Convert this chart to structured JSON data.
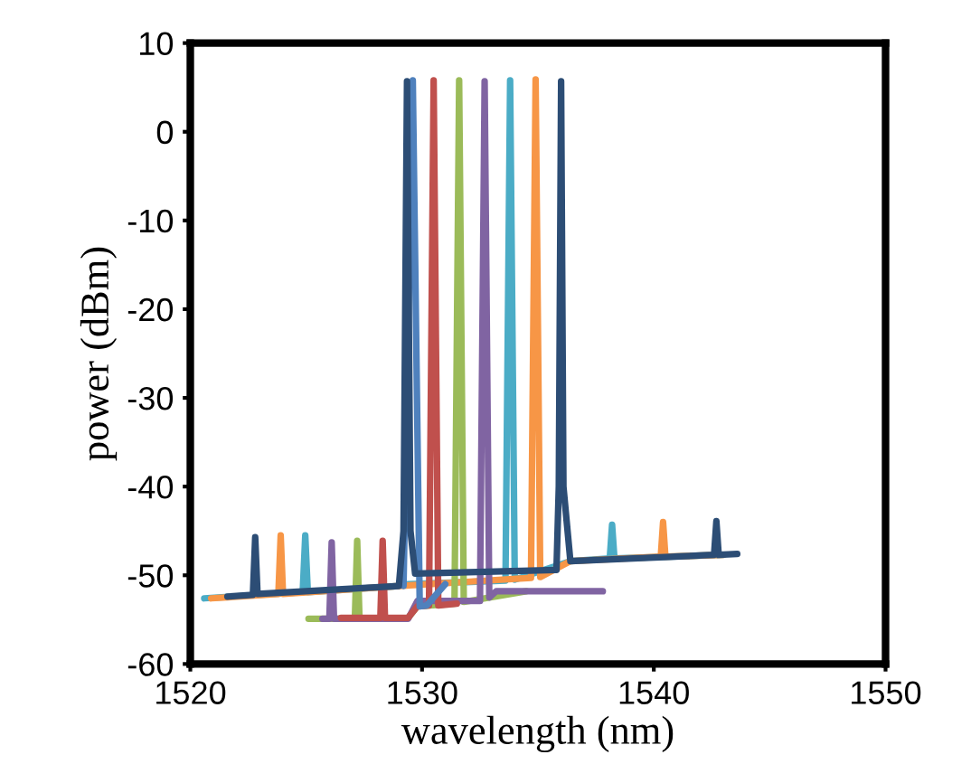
{
  "chart_data": {
    "type": "line",
    "xlabel": "wavelength (nm)",
    "ylabel": "power (dBm)",
    "xlim": [
      1520,
      1550
    ],
    "xticks": [
      1520,
      1530,
      1540,
      1550
    ],
    "ylim": [
      -60,
      10
    ],
    "yticks": [
      -60,
      -50,
      -40,
      -30,
      -20,
      -10,
      0,
      10
    ],
    "grid": false,
    "legend": false,
    "marker": "none",
    "line_style": "solid",
    "series": [
      {
        "color": "#4bacc6",
        "x": [
          1520.6,
          1524.85,
          1524.96,
          1525.07,
          1529.0,
          1529.4,
          1533.6,
          1533.8,
          1534.0,
          1536.4,
          1538.1,
          1538.2,
          1538.3,
          1543.0
        ],
        "values": [
          -52.6,
          -51.9,
          -45.5,
          -51.9,
          -51.2,
          -51.0,
          -50.6,
          5.8,
          -50.5,
          -48.4,
          -48.1,
          -44.3,
          -48.1,
          -47.7
        ]
      },
      {
        "color": "#f79646",
        "x": [
          1520.9,
          1523.8,
          1523.9,
          1524.0,
          1529.0,
          1534.7,
          1534.9,
          1535.1,
          1536.4,
          1540.3,
          1540.4,
          1540.5,
          1543.0
        ],
        "values": [
          -52.6,
          -52.1,
          -45.5,
          -52.1,
          -51.2,
          -50.3,
          5.9,
          -50.2,
          -48.4,
          -47.9,
          -44.0,
          -47.9,
          -47.7
        ]
      },
      {
        "color": "#9bbb59",
        "x": [
          1525.1,
          1527.1,
          1527.2,
          1527.3,
          1529.4,
          1529.8,
          1531.4,
          1531.6,
          1531.8,
          1534.5
        ],
        "values": [
          -54.9,
          -54.9,
          -46.1,
          -54.9,
          -54.8,
          -53.5,
          -53.2,
          5.8,
          -53.0,
          -51.8
        ]
      },
      {
        "color": "#8064a2",
        "x": [
          1525.7,
          1526.0,
          1526.1,
          1526.2,
          1529.4,
          1529.8,
          1532.5,
          1532.7,
          1532.9,
          1533.2,
          1537.8
        ],
        "values": [
          -54.9,
          -54.9,
          -46.3,
          -54.9,
          -54.9,
          -52.9,
          -52.9,
          5.7,
          -52.5,
          -51.8,
          -51.8
        ]
      },
      {
        "color": "#c0504d",
        "x": [
          1526.5,
          1528.2,
          1528.3,
          1528.4,
          1529.4,
          1529.8,
          1530.3,
          1530.5,
          1530.7,
          1531.5
        ],
        "values": [
          -54.8,
          -54.8,
          -46.1,
          -54.8,
          -54.8,
          -53.5,
          -53.4,
          5.8,
          -53.4,
          -53.2
        ]
      },
      {
        "color": "#4f81bd",
        "x": [
          1529.2,
          1529.6,
          1529.9,
          1530.2,
          1531.0
        ],
        "values": [
          -51.2,
          5.8,
          -53.5,
          -53.4,
          -51.0
        ]
      },
      {
        "color": "#2c4d75",
        "x": [
          1521.6,
          1522.7,
          1522.8,
          1522.9,
          1529.0,
          1529.2,
          1529.35,
          1529.5,
          1529.7,
          1535.8,
          1535.9,
          1536.0,
          1536.1,
          1536.4,
          1542.6,
          1542.7,
          1542.8,
          1543.6
        ],
        "values": [
          -52.4,
          -52.2,
          -45.7,
          -52.1,
          -51.2,
          -45.0,
          5.7,
          -45.0,
          -49.8,
          -49.4,
          -40.0,
          5.7,
          -40.0,
          -48.4,
          -47.7,
          -43.9,
          -47.7,
          -47.6
        ]
      }
    ]
  }
}
